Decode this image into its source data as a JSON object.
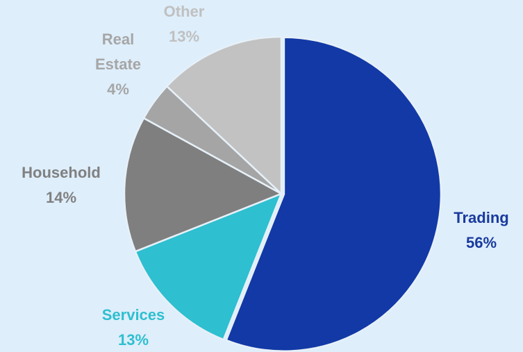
{
  "chart_data": {
    "type": "pie",
    "categories": [
      "Trading",
      "Services",
      "Household",
      "Real Estate",
      "Other"
    ],
    "values": [
      56,
      13,
      14,
      4,
      13
    ],
    "value_labels": [
      "56%",
      "13%",
      "14%",
      "4%",
      "13%"
    ],
    "colors": [
      "#1239a6",
      "#2ebfd0",
      "#7f7f7f",
      "#a5a5a5",
      "#c2c2c2"
    ],
    "label_colors": [
      "#1a3a9e",
      "#2ebfd0",
      "#808080",
      "#a6a6a6",
      "#c0c0c0"
    ]
  }
}
